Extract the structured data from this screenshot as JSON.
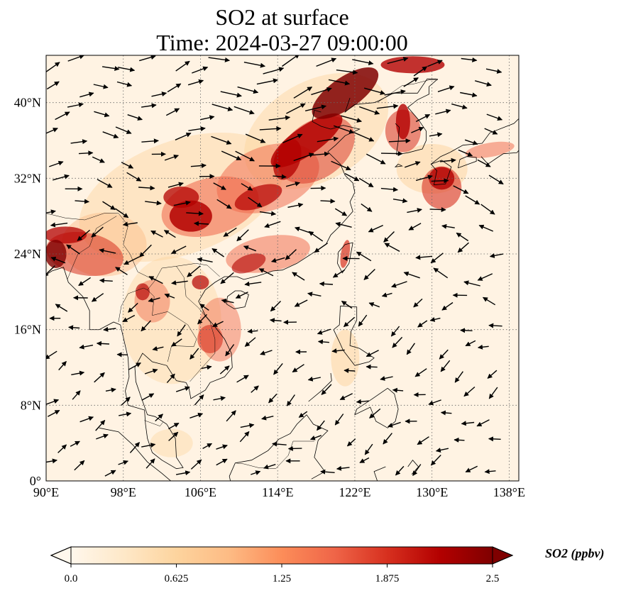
{
  "title": {
    "line1": "SO2 at surface",
    "line2": "Time: 2024-03-27 09:00:00"
  },
  "map": {
    "lon_range": [
      90,
      139
    ],
    "lat_range": [
      0,
      45
    ],
    "lon_ticks": [
      {
        "value": 90,
        "label": "90°E"
      },
      {
        "value": 98,
        "label": "98°E"
      },
      {
        "value": 106,
        "label": "106°E"
      },
      {
        "value": 114,
        "label": "114°E"
      },
      {
        "value": 122,
        "label": "122°E"
      },
      {
        "value": 130,
        "label": "130°E"
      },
      {
        "value": 138,
        "label": "138°E"
      }
    ],
    "lat_ticks": [
      {
        "value": 0,
        "label": "0°"
      },
      {
        "value": 8,
        "label": "8°N"
      },
      {
        "value": 16,
        "label": "16°N"
      },
      {
        "value": 24,
        "label": "24°N"
      },
      {
        "value": 32,
        "label": "32°N"
      },
      {
        "value": 40,
        "label": "40°N"
      }
    ]
  },
  "colorbar": {
    "label": "SO2 (ppbv)",
    "min": 0,
    "max": 2.5,
    "ticks": [
      "0.0",
      "0.625",
      "1.25",
      "1.875",
      "2.5"
    ],
    "colors": [
      "#fff7ec",
      "#fee8c8",
      "#fdd49e",
      "#fdbb84",
      "#fc8d59",
      "#ef6548",
      "#d7301f",
      "#b30000",
      "#7f0000"
    ]
  }
}
